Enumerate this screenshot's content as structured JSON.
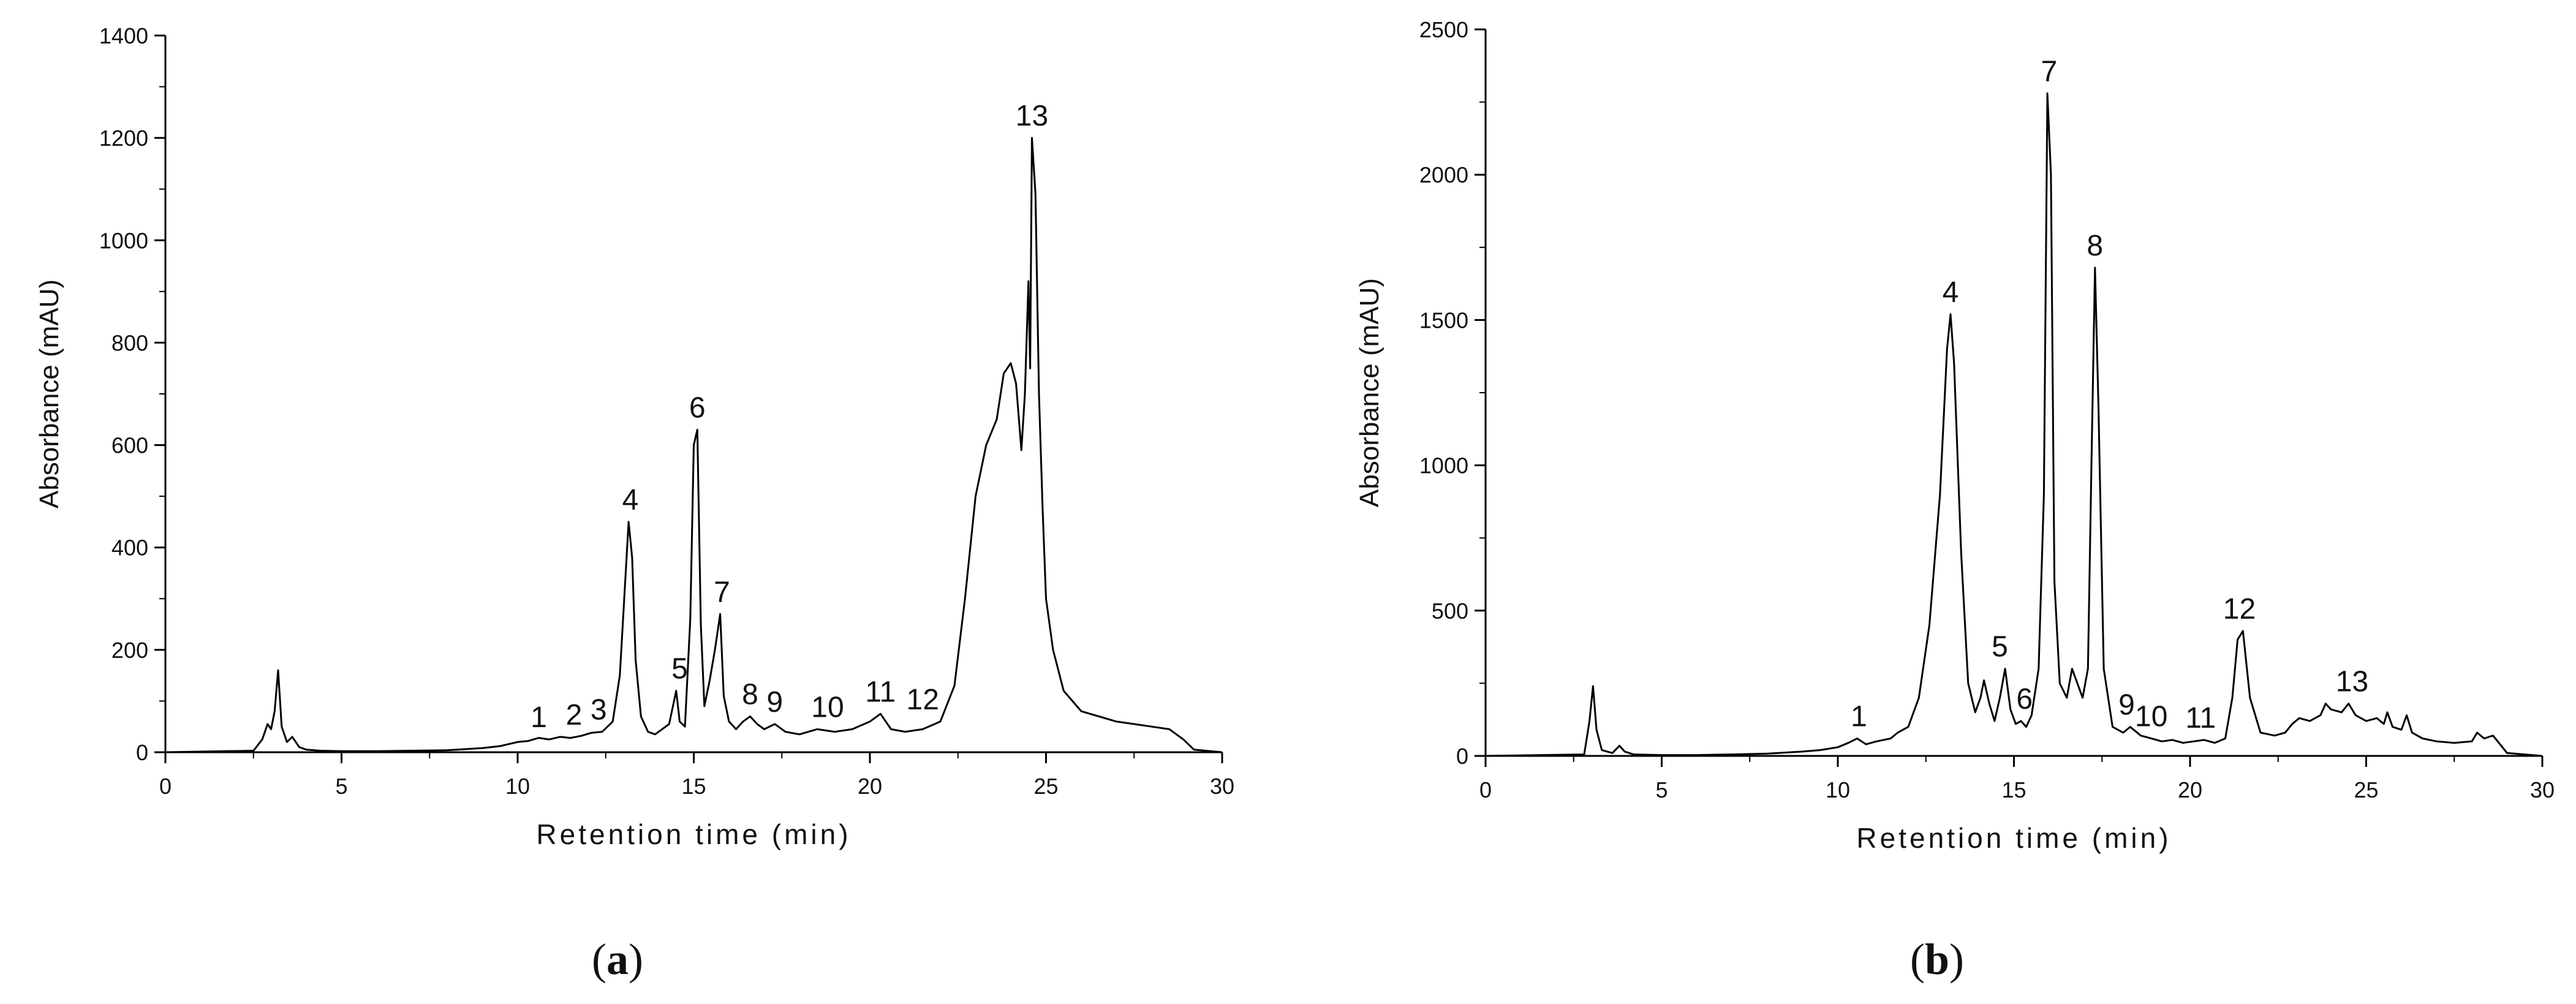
{
  "panels": [
    {
      "caption": "(a)",
      "caption_letter": "a",
      "chart_data": {
        "type": "line",
        "xlabel": "Retention time (min)",
        "ylabel": "Absorbance (mAU)",
        "xlim": [
          0,
          30
        ],
        "ylim": [
          0,
          1400
        ],
        "xticks": [
          0,
          5,
          10,
          15,
          20,
          25,
          30
        ],
        "yticks": [
          0,
          200,
          400,
          600,
          800,
          1000,
          1200,
          1400
        ],
        "grid": false,
        "line_color": "#000000",
        "series": [
          {
            "x": [
              0,
              2.5,
              2.75,
              2.9,
              3.0,
              3.1,
              3.2,
              3.3,
              3.45,
              3.6,
              3.8,
              4.0,
              4.4,
              5,
              6,
              7,
              8,
              9,
              9.5,
              10,
              10.3,
              10.6,
              10.9,
              11.2,
              11.5,
              11.8,
              12.1,
              12.4,
              12.7,
              12.9,
              13.05,
              13.15,
              13.25,
              13.35,
              13.5,
              13.7,
              13.9,
              14.1,
              14.3,
              14.5,
              14.6,
              14.75,
              14.9,
              15.0,
              15.1,
              15.2,
              15.3,
              15.45,
              15.6,
              15.75,
              15.85,
              16.0,
              16.2,
              16.4,
              16.6,
              16.8,
              17.0,
              17.3,
              17.6,
              18.0,
              18.5,
              19.0,
              19.5,
              20.0,
              20.3,
              20.6,
              21.0,
              21.5,
              22.0,
              22.4,
              22.7,
              23.0,
              23.3,
              23.6,
              23.8,
              24.0,
              24.15,
              24.3,
              24.4,
              24.5,
              24.55,
              24.6,
              24.7,
              24.8,
              24.9,
              25.0,
              25.2,
              25.5,
              26.0,
              26.5,
              27.0,
              27.5,
              28.0,
              28.5,
              28.9,
              29.2,
              30
            ],
            "y": [
              0,
              3,
              25,
              55,
              45,
              80,
              160,
              50,
              20,
              30,
              10,
              5,
              3,
              2,
              2,
              3,
              4,
              8,
              12,
              20,
              22,
              28,
              25,
              30,
              28,
              32,
              38,
              40,
              60,
              150,
              330,
              450,
              380,
              180,
              70,
              40,
              35,
              45,
              55,
              120,
              60,
              50,
              260,
              600,
              630,
              250,
              90,
              140,
              200,
              270,
              110,
              60,
              45,
              60,
              70,
              55,
              45,
              55,
              40,
              35,
              45,
              40,
              45,
              60,
              75,
              45,
              40,
              45,
              60,
              130,
              300,
              500,
              600,
              650,
              740,
              760,
              720,
              590,
              700,
              920,
              750,
              1200,
              1090,
              700,
              480,
              300,
              200,
              120,
              80,
              70,
              60,
              55,
              50,
              45,
              25,
              5,
              0
            ]
          }
        ],
        "annotations": [
          {
            "text": "1",
            "x": 10.6,
            "y": 25
          },
          {
            "text": "2",
            "x": 11.6,
            "y": 30
          },
          {
            "text": "3",
            "x": 12.3,
            "y": 40
          },
          {
            "text": "4",
            "x": 13.2,
            "y": 450
          },
          {
            "text": "5",
            "x": 14.6,
            "y": 120
          },
          {
            "text": "6",
            "x": 15.1,
            "y": 630
          },
          {
            "text": "7",
            "x": 15.8,
            "y": 270
          },
          {
            "text": "8",
            "x": 16.6,
            "y": 70
          },
          {
            "text": "9",
            "x": 17.3,
            "y": 55
          },
          {
            "text": "10",
            "x": 18.8,
            "y": 45
          },
          {
            "text": "11",
            "x": 20.3,
            "y": 75
          },
          {
            "text": "12",
            "x": 21.5,
            "y": 60
          },
          {
            "text": "13",
            "x": 24.6,
            "y": 1200
          }
        ]
      }
    },
    {
      "caption": "(b)",
      "caption_letter": "b",
      "chart_data": {
        "type": "line",
        "xlabel": "Retention time (min)",
        "ylabel": "Absorbance (mAU)",
        "xlim": [
          0,
          30
        ],
        "ylim": [
          0,
          2500
        ],
        "xticks": [
          0,
          5,
          10,
          15,
          20,
          25,
          30
        ],
        "yticks": [
          0,
          500,
          1000,
          1500,
          2000,
          2500
        ],
        "grid": false,
        "line_color": "#000000",
        "series": [
          {
            "x": [
              0,
              2.8,
              2.95,
              3.05,
              3.15,
              3.3,
              3.6,
              3.8,
              3.95,
              4.2,
              5,
              6,
              7,
              8,
              9,
              9.5,
              10,
              10.3,
              10.55,
              10.8,
              11.1,
              11.5,
              11.7,
              12.0,
              12.3,
              12.6,
              12.9,
              13.1,
              13.2,
              13.3,
              13.5,
              13.7,
              13.9,
              14.05,
              14.15,
              14.3,
              14.45,
              14.6,
              14.75,
              14.9,
              15.05,
              15.2,
              15.35,
              15.5,
              15.7,
              15.85,
              15.95,
              16.05,
              16.15,
              16.3,
              16.5,
              16.65,
              16.8,
              16.95,
              17.1,
              17.2,
              17.3,
              17.4,
              17.55,
              17.8,
              18.1,
              18.3,
              18.6,
              18.9,
              19.2,
              19.5,
              19.8,
              20.1,
              20.4,
              20.7,
              21.0,
              21.2,
              21.35,
              21.5,
              21.7,
              22.0,
              22.4,
              22.7,
              22.9,
              23.1,
              23.4,
              23.7,
              23.85,
              24.0,
              24.3,
              24.5,
              24.7,
              25.0,
              25.3,
              25.5,
              25.6,
              25.75,
              26.0,
              26.15,
              26.3,
              26.6,
              27.0,
              27.5,
              28.0,
              28.15,
              28.35,
              28.6,
              28.8,
              29.0,
              30
            ],
            "y": [
              0,
              5,
              120,
              240,
              90,
              20,
              10,
              35,
              15,
              5,
              3,
              3,
              5,
              8,
              15,
              20,
              30,
              45,
              60,
              40,
              50,
              60,
              80,
              100,
              200,
              450,
              900,
              1400,
              1520,
              1350,
              700,
              250,
              150,
              200,
              260,
              180,
              120,
              200,
              300,
              160,
              110,
              120,
              100,
              140,
              300,
              900,
              2280,
              2000,
              600,
              250,
              200,
              300,
              250,
              200,
              300,
              1000,
              1680,
              1200,
              300,
              100,
              80,
              100,
              70,
              60,
              50,
              55,
              45,
              50,
              55,
              45,
              60,
              200,
              400,
              430,
              200,
              80,
              70,
              80,
              110,
              130,
              120,
              140,
              180,
              160,
              150,
              180,
              140,
              120,
              130,
              110,
              150,
              100,
              90,
              140,
              80,
              60,
              50,
              45,
              50,
              80,
              60,
              70,
              40,
              10,
              0
            ]
          }
        ],
        "annotations": [
          {
            "text": "1",
            "x": 10.6,
            "y": 60
          },
          {
            "text": "4",
            "x": 13.2,
            "y": 1520
          },
          {
            "text": "5",
            "x": 14.6,
            "y": 300
          },
          {
            "text": "6",
            "x": 15.3,
            "y": 120
          },
          {
            "text": "7",
            "x": 16.0,
            "y": 2280
          },
          {
            "text": "8",
            "x": 17.3,
            "y": 1680
          },
          {
            "text": "9",
            "x": 18.2,
            "y": 100
          },
          {
            "text": "10",
            "x": 18.9,
            "y": 60
          },
          {
            "text": "11",
            "x": 20.3,
            "y": 55
          },
          {
            "text": "12",
            "x": 21.4,
            "y": 430
          },
          {
            "text": "13",
            "x": 24.6,
            "y": 180
          }
        ]
      }
    }
  ]
}
